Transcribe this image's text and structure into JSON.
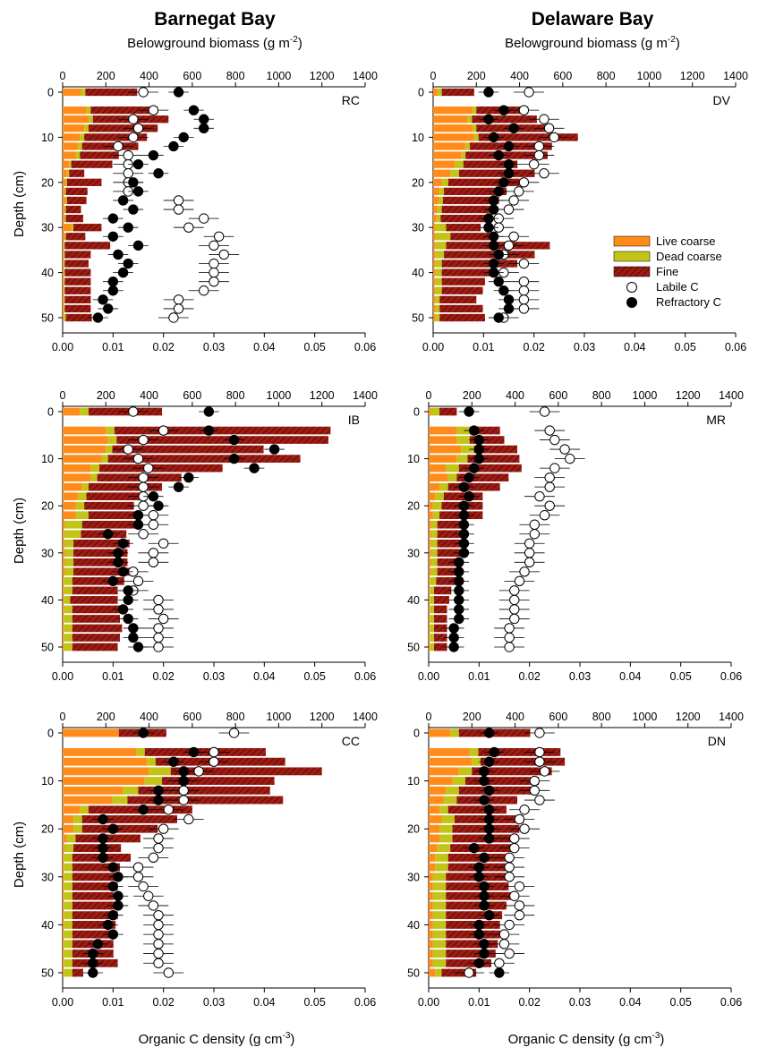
{
  "figure": {
    "left_title": "Barnegat Bay",
    "right_title": "Delaware Bay",
    "top_axis_label": "Belowground biomass (g m",
    "top_axis_sup": "-2",
    "top_axis_close": ")",
    "bottom_axis_label": "Organic C density (g cm",
    "bottom_axis_sup": "-3",
    "bottom_axis_close": ")",
    "y_axis_label": "Depth (cm)"
  },
  "legend": {
    "live_coarse": "Live coarse",
    "dead_coarse": "Dead coarse",
    "fine": "Fine",
    "labile": "Labile C",
    "refractory": "Refractory C"
  },
  "colors": {
    "live_coarse": "#ff8c1a",
    "dead_coarse": "#c2c417",
    "fine": "#9e1b12",
    "fine_hatch": "#5a0c08",
    "labile_fill": "#ffffff",
    "refractory_fill": "#000000"
  },
  "chart_data": [
    {
      "type": "bar",
      "site": "RC",
      "depth": [
        0,
        4,
        6,
        8,
        10,
        12,
        14,
        16,
        18,
        20,
        22,
        24,
        26,
        28,
        30,
        32,
        34,
        36,
        38,
        40,
        42,
        44,
        46,
        48,
        50
      ],
      "live_coarse": [
        85,
        110,
        120,
        100,
        80,
        70,
        60,
        30,
        20,
        15,
        10,
        15,
        10,
        10,
        40,
        10,
        5,
        5,
        5,
        5,
        5,
        5,
        5,
        5,
        5
      ],
      "dead_coarse": [
        20,
        20,
        20,
        20,
        20,
        20,
        20,
        10,
        10,
        5,
        5,
        5,
        5,
        5,
        10,
        5,
        5,
        5,
        5,
        5,
        5,
        5,
        5,
        5,
        10
      ],
      "fine": [
        240,
        310,
        350,
        320,
        290,
        260,
        180,
        190,
        70,
        160,
        100,
        90,
        70,
        80,
        130,
        90,
        210,
        120,
        110,
        120,
        120,
        120,
        120,
        120,
        120
      ],
      "labile_c": [
        0.016,
        0.018,
        0.014,
        0.015,
        0.014,
        0.011,
        0.013,
        0.013,
        0.013,
        0.013,
        0.013,
        0.023,
        0.023,
        0.028,
        0.025,
        0.031,
        0.03,
        0.032,
        0.03,
        0.03,
        0.03,
        0.028,
        0.023,
        0.023,
        0.022
      ],
      "refractory_c": [
        0.023,
        0.026,
        0.028,
        0.028,
        0.024,
        0.022,
        0.018,
        0.015,
        0.019,
        0.014,
        0.015,
        0.012,
        0.014,
        0.01,
        0.013,
        0.01,
        0.015,
        0.011,
        0.013,
        0.012,
        0.01,
        0.01,
        0.008,
        0.009,
        0.007
      ],
      "y_ticks": [
        0,
        10,
        20,
        30,
        40,
        50
      ],
      "x_bottom_ticks": [
        "0.00",
        "0.01",
        "0.02",
        "0.03",
        "0.04",
        "0.05",
        "0.06"
      ],
      "x_top_ticks": [
        "0",
        "200",
        "400",
        "600",
        "800",
        "1000",
        "1200",
        "1400"
      ]
    },
    {
      "type": "bar",
      "site": "DV",
      "depth": [
        0,
        4,
        6,
        8,
        10,
        12,
        14,
        16,
        18,
        20,
        22,
        24,
        26,
        28,
        30,
        32,
        34,
        36,
        38,
        40,
        42,
        44,
        46,
        48,
        50
      ],
      "live_coarse": [
        20,
        180,
        160,
        180,
        190,
        150,
        130,
        100,
        80,
        40,
        30,
        25,
        20,
        15,
        10,
        10,
        10,
        10,
        10,
        10,
        10,
        10,
        10,
        10,
        10
      ],
      "dead_coarse": [
        20,
        20,
        20,
        20,
        20,
        20,
        20,
        40,
        40,
        30,
        20,
        20,
        20,
        20,
        50,
        70,
        50,
        40,
        30,
        30,
        30,
        30,
        20,
        20,
        20
      ],
      "fine": [
        150,
        240,
        300,
        320,
        460,
        380,
        380,
        250,
        350,
        330,
        290,
        260,
        220,
        210,
        160,
        180,
        480,
        420,
        350,
        260,
        200,
        190,
        170,
        200,
        210
      ],
      "labile_c": [
        0.019,
        0.018,
        0.022,
        0.023,
        0.024,
        0.021,
        0.021,
        0.02,
        0.022,
        0.018,
        0.017,
        0.016,
        0.015,
        0.013,
        0.013,
        0.016,
        0.015,
        0.014,
        0.018,
        0.014,
        0.018,
        0.018,
        0.018,
        0.018,
        0.014
      ],
      "refractory_c": [
        0.011,
        0.014,
        0.011,
        0.016,
        0.012,
        0.015,
        0.013,
        0.015,
        0.015,
        0.014,
        0.013,
        0.012,
        0.012,
        0.011,
        0.011,
        0.012,
        0.012,
        0.013,
        0.012,
        0.012,
        0.013,
        0.014,
        0.015,
        0.015,
        0.013
      ],
      "y_ticks": [
        0,
        10,
        20,
        30,
        40,
        50
      ],
      "x_bottom_ticks": [
        "0.00",
        "0.01",
        "0.02",
        "0.03",
        "0.04",
        "0.05",
        "0.06"
      ],
      "x_top_ticks": [
        "0",
        "200",
        "400",
        "600",
        "800",
        "1000",
        "1200",
        "1400"
      ]
    },
    {
      "type": "bar",
      "site": "IB",
      "depth": [
        0,
        4,
        6,
        8,
        10,
        12,
        14,
        16,
        18,
        20,
        22,
        24,
        26,
        28,
        30,
        32,
        34,
        36,
        38,
        40,
        42,
        44,
        46,
        48,
        50
      ],
      "live_coarse": [
        80,
        200,
        210,
        200,
        180,
        130,
        130,
        90,
        70,
        60,
        60,
        10,
        5,
        10,
        10,
        10,
        10,
        5,
        5,
        5,
        5,
        5,
        5,
        5,
        5
      ],
      "dead_coarse": [
        40,
        40,
        40,
        30,
        30,
        40,
        30,
        30,
        40,
        40,
        60,
        80,
        80,
        40,
        40,
        40,
        40,
        40,
        40,
        30,
        40,
        40,
        40,
        40,
        40
      ],
      "fine": [
        340,
        1000,
        980,
        700,
        890,
        570,
        390,
        340,
        270,
        230,
        240,
        250,
        210,
        260,
        250,
        250,
        270,
        240,
        210,
        220,
        220,
        220,
        230,
        220,
        210
      ],
      "labile_c": [
        0.014,
        0.02,
        0.016,
        0.013,
        0.015,
        0.017,
        0.016,
        0.016,
        0.016,
        0.016,
        0.018,
        0.018,
        0.016,
        0.02,
        0.018,
        0.018,
        0.014,
        0.015,
        0.014,
        0.019,
        0.019,
        0.02,
        0.019,
        0.019,
        0.019
      ],
      "refractory_c": [
        0.029,
        0.029,
        0.034,
        0.042,
        0.034,
        0.038,
        0.025,
        0.023,
        0.018,
        0.019,
        0.015,
        0.015,
        0.009,
        0.012,
        0.011,
        0.011,
        0.012,
        0.01,
        0.013,
        0.013,
        0.012,
        0.013,
        0.014,
        0.014,
        0.015
      ],
      "y_ticks": [
        0,
        10,
        20,
        30,
        40,
        50
      ],
      "x_bottom_ticks": [
        "0.00",
        "0.01",
        "0.02",
        "0.03",
        "0.04",
        "0.05",
        "0.06"
      ],
      "x_top_ticks": [
        "0",
        "200",
        "400",
        "600",
        "800",
        "1000",
        "1200",
        "1400"
      ]
    },
    {
      "type": "bar",
      "site": "MR",
      "depth": [
        0,
        4,
        6,
        8,
        10,
        12,
        14,
        16,
        18,
        20,
        22,
        24,
        26,
        28,
        30,
        32,
        34,
        36,
        38,
        40,
        42,
        44,
        46,
        48,
        50
      ],
      "live_coarse": [
        10,
        130,
        130,
        150,
        130,
        80,
        90,
        50,
        30,
        20,
        20,
        10,
        10,
        10,
        10,
        10,
        10,
        5,
        5,
        5,
        5,
        5,
        5,
        5,
        5
      ],
      "dead_coarse": [
        40,
        60,
        60,
        60,
        50,
        60,
        40,
        40,
        40,
        40,
        30,
        30,
        30,
        30,
        30,
        30,
        30,
        30,
        20,
        20,
        20,
        20,
        20,
        20,
        20
      ],
      "fine": [
        80,
        140,
        160,
        200,
        240,
        290,
        240,
        240,
        180,
        190,
        200,
        120,
        140,
        120,
        110,
        100,
        100,
        90,
        80,
        70,
        60,
        60,
        60,
        60,
        60
      ],
      "labile_c": [
        0.023,
        0.024,
        0.025,
        0.027,
        0.028,
        0.025,
        0.024,
        0.024,
        0.022,
        0.024,
        0.023,
        0.021,
        0.021,
        0.02,
        0.02,
        0.02,
        0.019,
        0.018,
        0.017,
        0.017,
        0.017,
        0.017,
        0.016,
        0.016,
        0.016
      ],
      "refractory_c": [
        0.008,
        0.009,
        0.01,
        0.01,
        0.01,
        0.009,
        0.008,
        0.007,
        0.008,
        0.007,
        0.007,
        0.007,
        0.007,
        0.007,
        0.007,
        0.006,
        0.006,
        0.006,
        0.006,
        0.006,
        0.006,
        0.006,
        0.005,
        0.005,
        0.005
      ],
      "y_ticks": [
        0,
        10,
        20,
        30,
        40,
        50
      ],
      "x_bottom_ticks": [
        "0.00",
        "0.01",
        "0.02",
        "0.03",
        "0.04",
        "0.05",
        "0.06"
      ],
      "x_top_ticks": [
        "0",
        "200",
        "400",
        "600",
        "800",
        "1000",
        "1200",
        "1400"
      ]
    },
    {
      "type": "bar",
      "site": "CC",
      "depth": [
        0,
        4,
        6,
        8,
        10,
        12,
        14,
        16,
        18,
        20,
        22,
        24,
        26,
        28,
        30,
        32,
        34,
        36,
        38,
        40,
        42,
        44,
        46,
        48,
        50
      ],
      "live_coarse": [
        260,
        340,
        390,
        400,
        380,
        280,
        230,
        80,
        50,
        50,
        20,
        10,
        5,
        5,
        5,
        5,
        5,
        5,
        5,
        5,
        5,
        5,
        5,
        5,
        5
      ],
      "dead_coarse": [
        0,
        40,
        40,
        100,
        80,
        70,
        70,
        40,
        40,
        40,
        40,
        40,
        40,
        40,
        40,
        40,
        40,
        40,
        40,
        40,
        40,
        40,
        40,
        40,
        40
      ],
      "fine": [
        220,
        560,
        600,
        700,
        520,
        610,
        720,
        480,
        440,
        350,
        300,
        220,
        270,
        220,
        200,
        210,
        190,
        200,
        210,
        200,
        200,
        190,
        190,
        210,
        50
      ],
      "labile_c": [
        0.034,
        0.03,
        0.03,
        0.027,
        0.024,
        0.024,
        0.024,
        0.021,
        0.025,
        0.02,
        0.019,
        0.019,
        0.018,
        0.015,
        0.015,
        0.016,
        0.017,
        0.018,
        0.019,
        0.019,
        0.019,
        0.019,
        0.019,
        0.019,
        0.021
      ],
      "refractory_c": [
        0.016,
        0.026,
        0.022,
        0.024,
        0.024,
        0.019,
        0.019,
        0.016,
        0.008,
        0.01,
        0.008,
        0.008,
        0.008,
        0.01,
        0.011,
        0.01,
        0.011,
        0.011,
        0.01,
        0.009,
        0.01,
        0.007,
        0.006,
        0.006,
        0.006
      ],
      "y_ticks": [
        0,
        10,
        20,
        30,
        40,
        50
      ],
      "x_bottom_ticks": [
        "0.00",
        "0.01",
        "0.02",
        "0.03",
        "0.04",
        "0.05",
        "0.06"
      ],
      "x_top_ticks": [
        "0",
        "200",
        "400",
        "600",
        "800",
        "1000",
        "1200",
        "1400"
      ]
    },
    {
      "type": "bar",
      "site": "DN",
      "depth": [
        0,
        4,
        6,
        8,
        10,
        12,
        14,
        16,
        18,
        20,
        22,
        24,
        26,
        28,
        30,
        32,
        34,
        36,
        38,
        40,
        42,
        44,
        46,
        48,
        50
      ],
      "live_coarse": [
        100,
        190,
        200,
        140,
        110,
        80,
        70,
        50,
        60,
        50,
        50,
        40,
        30,
        30,
        20,
        20,
        20,
        20,
        20,
        20,
        20,
        20,
        20,
        20,
        30
      ],
      "dead_coarse": [
        40,
        40,
        40,
        60,
        60,
        60,
        60,
        40,
        60,
        60,
        60,
        60,
        60,
        60,
        60,
        60,
        60,
        60,
        60,
        60,
        60,
        60,
        60,
        60,
        30
      ],
      "fine": [
        330,
        380,
        390,
        370,
        340,
        340,
        280,
        270,
        320,
        310,
        270,
        300,
        290,
        300,
        290,
        290,
        300,
        280,
        260,
        250,
        250,
        240,
        230,
        210,
        160
      ],
      "labile_c": [
        0.022,
        0.022,
        0.022,
        0.023,
        0.021,
        0.021,
        0.022,
        0.019,
        0.018,
        0.019,
        0.017,
        0.017,
        0.016,
        0.016,
        0.016,
        0.018,
        0.017,
        0.018,
        0.018,
        0.016,
        0.015,
        0.015,
        0.016,
        0.014,
        0.008
      ],
      "refractory_c": [
        0.012,
        0.013,
        0.012,
        0.011,
        0.011,
        0.012,
        0.011,
        0.012,
        0.012,
        0.012,
        0.012,
        0.009,
        0.011,
        0.01,
        0.01,
        0.011,
        0.011,
        0.011,
        0.012,
        0.01,
        0.01,
        0.011,
        0.011,
        0.01,
        0.014
      ],
      "y_ticks": [
        0,
        10,
        20,
        30,
        40,
        50
      ],
      "x_bottom_ticks": [
        "0.00",
        "0.01",
        "0.02",
        "0.03",
        "0.04",
        "0.05",
        "0.06"
      ],
      "x_top_ticks": [
        "0",
        "200",
        "400",
        "600",
        "800",
        "1000",
        "1200",
        "1400"
      ]
    }
  ]
}
